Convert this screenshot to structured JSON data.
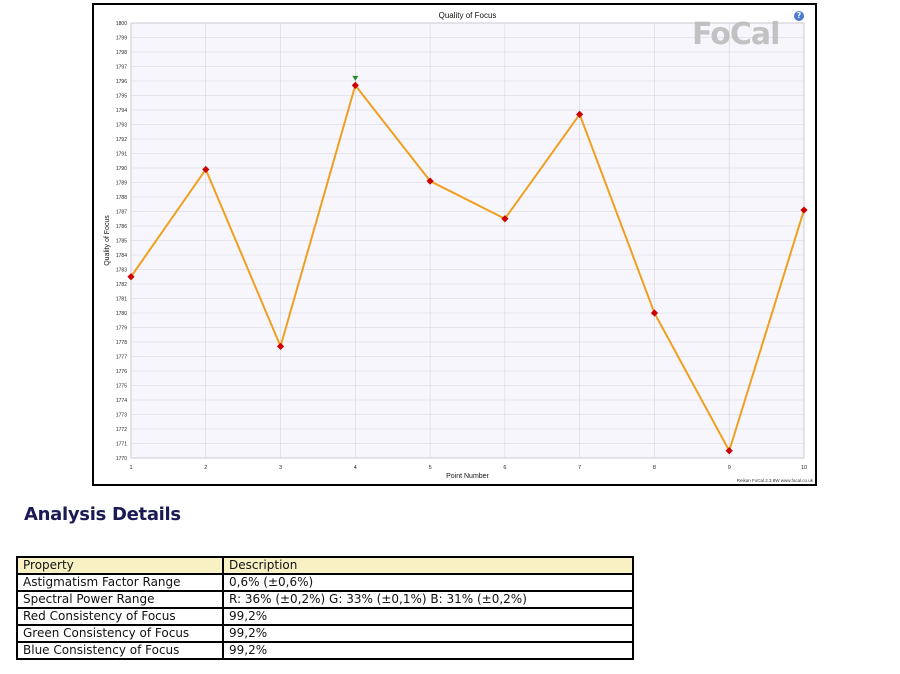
{
  "chart_data": {
    "type": "line",
    "title": "Quality of Focus",
    "xlabel": "Point Number",
    "ylabel": "Quality of Focus",
    "x": [
      1,
      2,
      3,
      4,
      5,
      6,
      7,
      8,
      9,
      10
    ],
    "series": [
      {
        "values": [
          1782.5,
          1789.9,
          1777.7,
          1795.7,
          1789.1,
          1786.5,
          1793.7,
          1780.0,
          1770.5,
          1787.1
        ],
        "color": "#f0a020",
        "marker_color": "#cc0000"
      }
    ],
    "best_marker": {
      "x": 4,
      "color": "#2a8a2a"
    },
    "xlim": [
      1,
      10
    ],
    "ylim": [
      1770,
      1800
    ],
    "yticks": [
      1770,
      1771,
      1772,
      1773,
      1774,
      1775,
      1776,
      1777,
      1778,
      1779,
      1780,
      1781,
      1782,
      1783,
      1784,
      1785,
      1786,
      1787,
      1788,
      1789,
      1790,
      1791,
      1792,
      1793,
      1794,
      1795,
      1796,
      1797,
      1798,
      1799,
      1800
    ],
    "xticks": [
      1,
      2,
      3,
      4,
      5,
      6,
      7,
      8,
      9,
      10
    ],
    "grid": true,
    "plot_background": "#f6f6fc"
  },
  "chart_ui": {
    "logo_text": "FoCal",
    "help_symbol": "?",
    "footer_credit": "Reikan FoCal 2.3.8W  www.focal.co.uk"
  },
  "analysis": {
    "title": "Analysis Details",
    "headers": [
      "Property",
      "Description"
    ],
    "rows": [
      [
        "Astigmatism Factor Range",
        "0,6% (±0,6%)"
      ],
      [
        "Spectral Power Range",
        "R: 36% (±0,2%) G: 33% (±0,1%) B: 31% (±0,2%)"
      ],
      [
        "Red Consistency of Focus",
        "99,2%"
      ],
      [
        "Green Consistency of Focus",
        "99,2%"
      ],
      [
        "Blue Consistency of Focus",
        "99,2%"
      ]
    ]
  }
}
